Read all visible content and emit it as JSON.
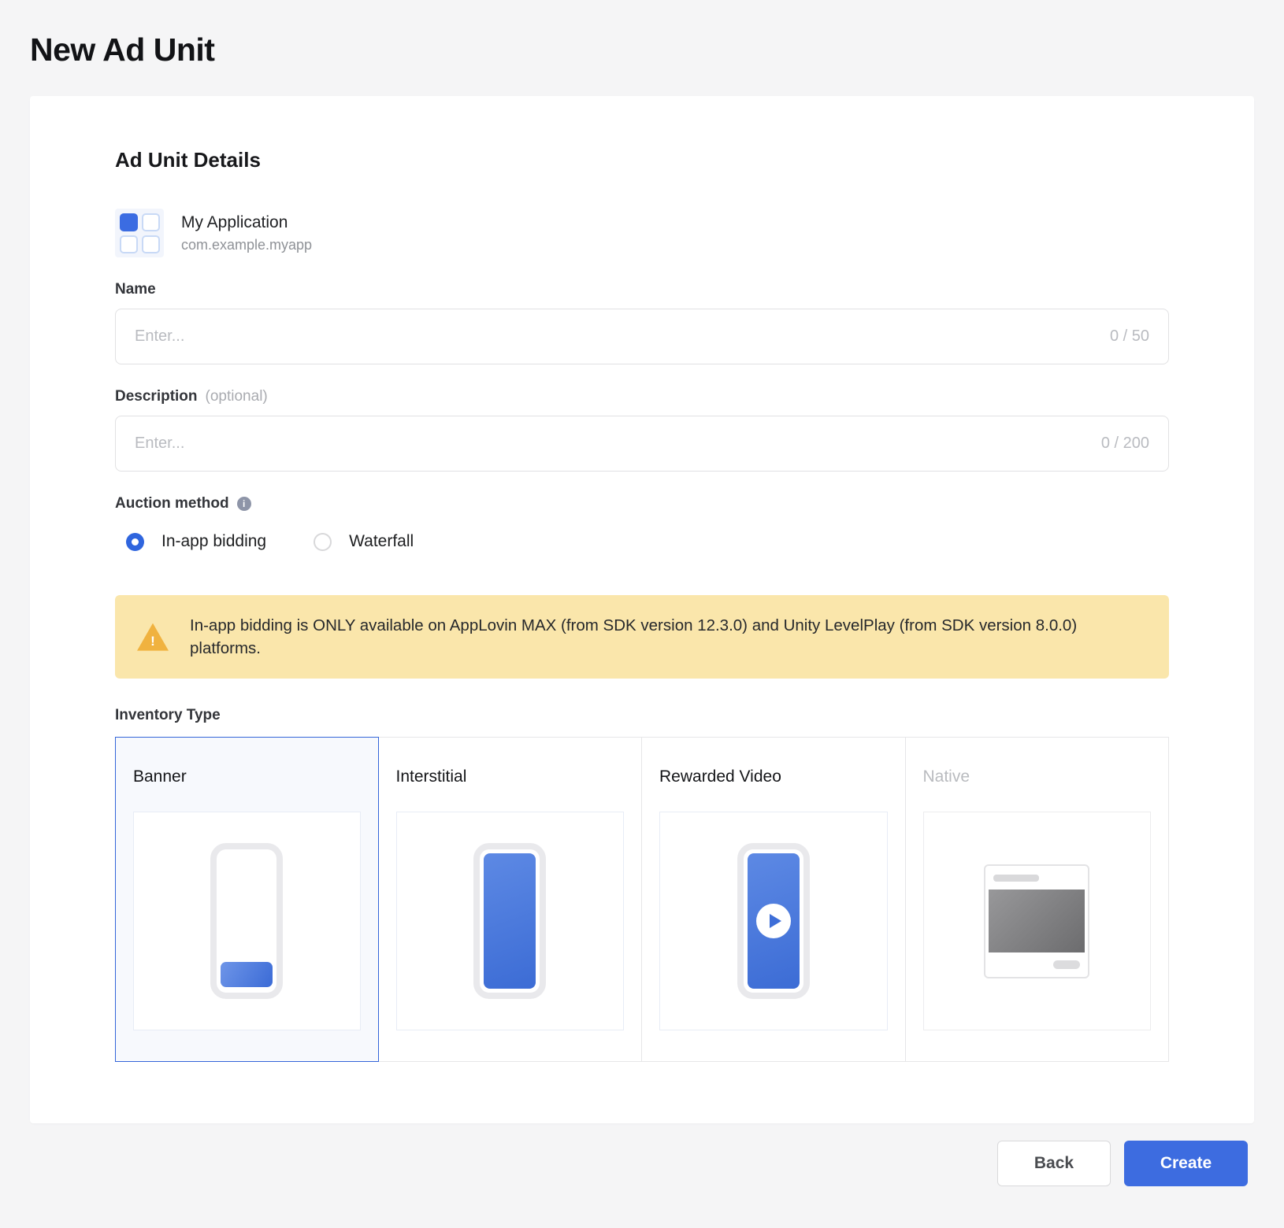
{
  "page": {
    "title": "New Ad Unit"
  },
  "form": {
    "section_title": "Ad Unit Details",
    "app": {
      "name": "My Application",
      "package": "com.example.myapp"
    },
    "name_field": {
      "label": "Name",
      "placeholder": "Enter...",
      "value": "",
      "counter": "0 / 50"
    },
    "description_field": {
      "label": "Description",
      "optional_hint": "(optional)",
      "placeholder": "Enter...",
      "value": "",
      "counter": "0 / 200"
    },
    "auction": {
      "label": "Auction method",
      "options": [
        {
          "label": "In-app bidding",
          "selected": true
        },
        {
          "label": "Waterfall",
          "selected": false
        }
      ],
      "warning_text": "In-app bidding is ONLY available on AppLovin MAX (from SDK version 12.3.0) and Unity LevelPlay (from SDK version 8.0.0) platforms."
    },
    "inventory": {
      "label": "Inventory Type",
      "types": [
        {
          "label": "Banner",
          "selected": true,
          "disabled": false
        },
        {
          "label": "Interstitial",
          "selected": false,
          "disabled": false
        },
        {
          "label": "Rewarded Video",
          "selected": false,
          "disabled": false
        },
        {
          "label": "Native",
          "selected": false,
          "disabled": true
        }
      ]
    }
  },
  "icons": {
    "info": "i",
    "warning": "!"
  },
  "footer": {
    "back_label": "Back",
    "create_label": "Create"
  },
  "colors": {
    "accent_blue": "#3d6ce0",
    "selected_border": "#3465d9",
    "warning_bg": "#fae6ab",
    "warning_icon": "#f0b23f",
    "page_bg": "#f5f5f6"
  }
}
